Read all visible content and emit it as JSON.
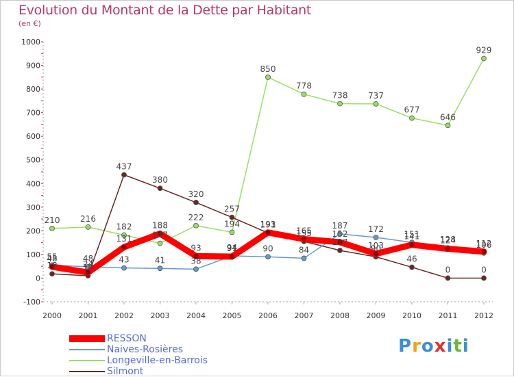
{
  "page": {
    "title": "Evolution du Montant de la Dette par Habitant",
    "subtitle": "(en €)"
  },
  "chart_data": {
    "type": "line",
    "title": "Evolution du Montant de la Dette par Habitant",
    "subtitle": "(en €)",
    "xlabel": "",
    "ylabel": "",
    "ylim": [
      -100,
      1000
    ],
    "yticks": [
      -100,
      0,
      100,
      200,
      300,
      400,
      500,
      600,
      700,
      800,
      900,
      1000
    ],
    "x": [
      "2000",
      "2001",
      "2002",
      "2003",
      "2004",
      "2005",
      "2006",
      "2007",
      "2008",
      "2009",
      "2010",
      "2011",
      "2012"
    ],
    "grid": false,
    "legend_position": "bottom-left",
    "series": [
      {
        "name": "RESSON",
        "color": "#ff0000",
        "values": [
          48,
          24,
          131,
          188,
          93,
          91,
          193,
          165,
          152,
          103,
          141,
          124,
          112
        ]
      },
      {
        "name": "Naives-Rosières",
        "color": "#6699cc",
        "values": [
          55,
          48,
          43,
          41,
          38,
          94,
          90,
          84,
          187,
          172,
          151,
          128,
          106
        ]
      },
      {
        "name": "Longeville-en-Barrois",
        "color": "#99dd66",
        "values": [
          210,
          216,
          182,
          147,
          222,
          194,
          850,
          778,
          738,
          737,
          677,
          646,
          929
        ]
      },
      {
        "name": "Silmont",
        "color": "#6b2424",
        "values": [
          18,
          10,
          437,
          380,
          320,
          257,
          191,
          155,
          117,
          90,
          46,
          0,
          0
        ]
      }
    ]
  },
  "logo": {
    "letters": [
      "P",
      "r",
      "o",
      "x",
      "i",
      "t",
      "i"
    ]
  }
}
